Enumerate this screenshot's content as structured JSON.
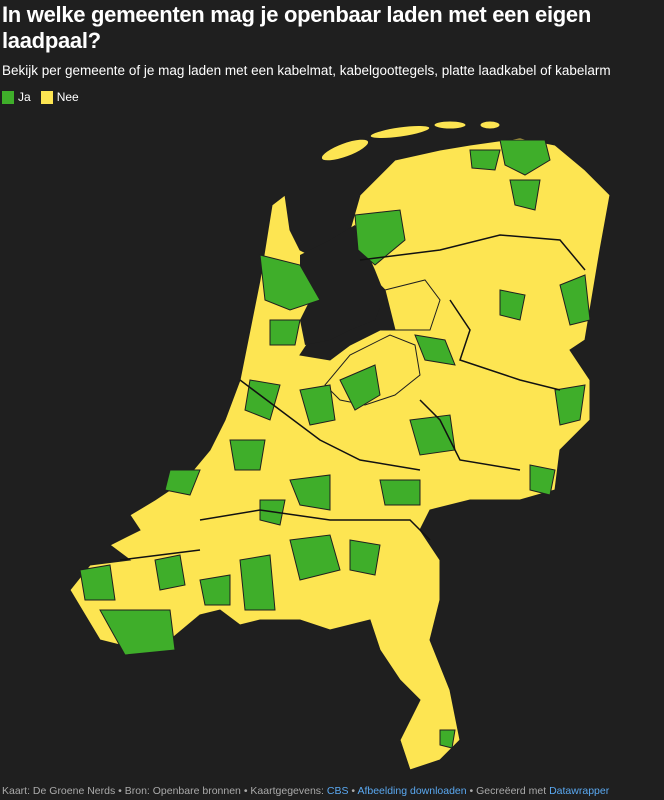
{
  "header": {
    "title": "In welke gemeenten mag je openbaar laden met een eigen laadpaal?",
    "subtitle": "Bekijk per gemeente of je mag laden met een kabelmat, kabelgoottegels, platte laadkabel of kabelarm"
  },
  "legend": [
    {
      "label": "Ja",
      "color": "#3fae2a"
    },
    {
      "label": "Nee",
      "color": "#fde552"
    }
  ],
  "map": {
    "region": "Nederland gemeenten",
    "background": "#1f1f1f",
    "border_color": "#1f1f1f"
  },
  "footer": {
    "map_credit": "Kaart: De Groene Nerds",
    "source": "Bron: Openbare bronnen",
    "mapdata_label": "Kaartgegevens:",
    "mapdata_link": "CBS",
    "download_link": "Afbeelding downloaden",
    "created_label": "Gecreëerd met",
    "created_link": "Datawrapper",
    "sep": " • "
  }
}
